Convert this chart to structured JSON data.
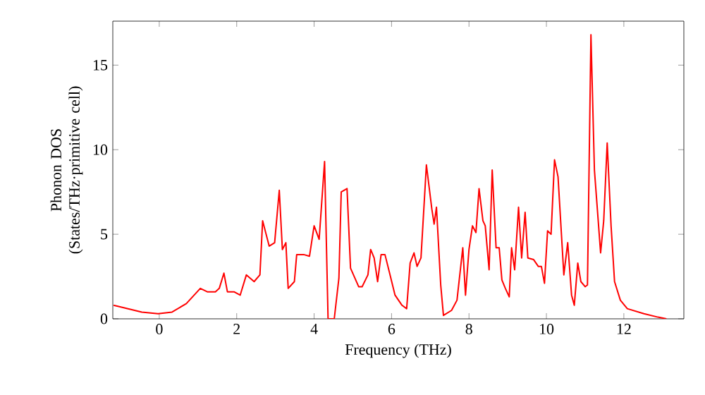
{
  "chart_data": {
    "type": "line",
    "xlabel": "Frequency (THz)",
    "ylabel": "Phonon DOS (States/THz·primitive cell)",
    "xlim": [
      -1.2,
      13.55
    ],
    "ylim": [
      0,
      17.6
    ],
    "xticks": [
      0,
      2,
      4,
      6,
      8,
      10,
      12
    ],
    "yticks": [
      0,
      5,
      10,
      15
    ],
    "grid": false,
    "marker": "none",
    "line_style": "solid",
    "series": [
      {
        "color": "#ff0000",
        "x": [
          -1.18,
          -0.45,
          -0.03,
          0.33,
          0.7,
          1.06,
          1.24,
          1.45,
          1.55,
          1.67,
          1.76,
          1.93,
          2.09,
          2.25,
          2.45,
          2.6,
          2.67,
          2.84,
          2.98,
          3.1,
          3.18,
          3.27,
          3.33,
          3.49,
          3.55,
          3.73,
          3.88,
          4.0,
          4.13,
          4.27,
          4.36,
          4.52,
          4.64,
          4.7,
          4.85,
          4.94,
          5.15,
          5.24,
          5.39,
          5.46,
          5.55,
          5.64,
          5.73,
          5.83,
          5.95,
          6.09,
          6.27,
          6.39,
          6.48,
          6.58,
          6.66,
          6.76,
          6.9,
          7.04,
          7.1,
          7.16,
          7.27,
          7.34,
          7.55,
          7.69,
          7.84,
          7.91,
          8.0,
          8.09,
          8.18,
          8.26,
          8.36,
          8.42,
          8.52,
          8.6,
          8.7,
          8.78,
          8.85,
          8.94,
          9.04,
          9.1,
          9.18,
          9.28,
          9.36,
          9.45,
          9.52,
          9.67,
          9.79,
          9.87,
          9.95,
          10.03,
          10.12,
          10.21,
          10.3,
          10.45,
          10.55,
          10.65,
          10.72,
          10.81,
          10.89,
          11.0,
          11.06,
          11.15,
          11.24,
          11.4,
          11.48,
          11.57,
          11.67,
          11.76,
          11.91,
          12.09,
          12.52,
          12.88,
          13.1
        ],
        "values": [
          0.8,
          0.4,
          0.3,
          0.4,
          0.9,
          1.8,
          1.6,
          1.6,
          1.8,
          2.7,
          1.6,
          1.6,
          1.4,
          2.6,
          2.2,
          2.6,
          5.8,
          4.3,
          4.5,
          7.6,
          4.1,
          4.5,
          1.8,
          2.2,
          3.8,
          3.8,
          3.7,
          5.5,
          4.7,
          9.3,
          0.0,
          0.0,
          2.4,
          7.5,
          7.7,
          3.0,
          1.9,
          1.9,
          2.6,
          4.1,
          3.6,
          2.2,
          3.8,
          3.8,
          2.7,
          1.4,
          0.8,
          0.6,
          3.3,
          3.9,
          3.1,
          3.6,
          9.1,
          6.5,
          5.6,
          6.6,
          2.0,
          0.2,
          0.5,
          1.1,
          4.2,
          1.4,
          4.1,
          5.5,
          5.1,
          7.7,
          5.8,
          5.5,
          2.9,
          8.8,
          4.2,
          4.2,
          2.3,
          1.8,
          1.3,
          4.2,
          2.9,
          6.6,
          3.6,
          6.3,
          3.6,
          3.5,
          3.1,
          3.1,
          2.1,
          5.2,
          5.0,
          9.4,
          8.4,
          2.6,
          4.5,
          1.4,
          0.8,
          3.3,
          2.2,
          1.9,
          2.0,
          16.8,
          8.8,
          3.9,
          5.8,
          10.4,
          5.5,
          2.2,
          1.1,
          0.6,
          0.3,
          0.1,
          0.0
        ]
      }
    ]
  }
}
